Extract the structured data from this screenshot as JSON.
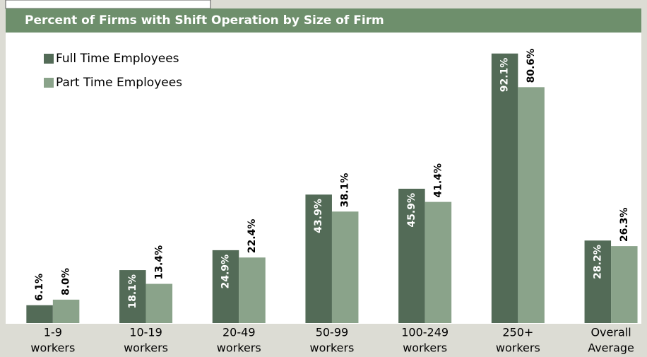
{
  "chart_data": {
    "type": "bar",
    "title": "Percent of Firms with Shift Operation by Size of Firm",
    "categories": [
      [
        "1-9",
        "workers"
      ],
      [
        "10-19",
        "workers"
      ],
      [
        "20-49",
        "workers"
      ],
      [
        "50-99",
        "workers"
      ],
      [
        "100-249",
        "workers"
      ],
      [
        "250+",
        "workers"
      ],
      [
        "Overall",
        "Average"
      ]
    ],
    "series": [
      {
        "name": "Full Time Employees",
        "color": "#536b57",
        "values": [
          6.1,
          18.1,
          24.9,
          43.9,
          45.9,
          92.1,
          28.2
        ],
        "value_labels": [
          "6.1%",
          "18.1%",
          "24.9%",
          "43.9%",
          "45.9%",
          "92.1%",
          "28.2%"
        ]
      },
      {
        "name": "Part Time Employees",
        "color": "#8aa38a",
        "values": [
          8.0,
          13.4,
          22.4,
          38.1,
          41.4,
          80.6,
          26.3
        ],
        "value_labels": [
          "8.0%",
          "13.4%",
          "22.4%",
          "38.1%",
          "41.4%",
          "80.6%",
          "26.3%"
        ]
      }
    ],
    "ylim": [
      0,
      100
    ],
    "legend": "upper left"
  }
}
